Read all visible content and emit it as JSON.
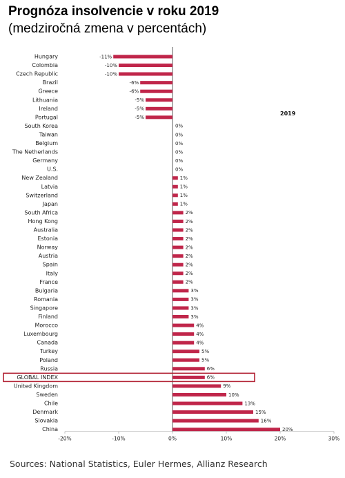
{
  "title": "Prognóza insolvencie v roku 2019",
  "subtitle": "(medziročná zmena v percentách)",
  "source": "Sources: National Statistics, Euler Hermes, Allianz Research",
  "highlight_label": "GLOBAL INDEX",
  "colors": {
    "bar": "#c0264a",
    "highlight_box": "#b22234",
    "axis": "#333333"
  },
  "chart_data": {
    "type": "bar",
    "orientation": "horizontal",
    "legend": "2019",
    "legend_position": "top-right",
    "xlim": [
      -20,
      30
    ],
    "x_ticks": [
      "-20%",
      "-10%",
      "0%",
      "10%",
      "20%",
      "30%"
    ],
    "categories": [
      "Hungary",
      "Colombia",
      "Czech Republic",
      "Brazil",
      "Greece",
      "Lithuania",
      "Ireland",
      "Portugal",
      "South Korea",
      "Taiwan",
      "Belgium",
      "The Netherlands",
      "Germany",
      "U.S.",
      "New Zealand",
      "Latvia",
      "Switzerland",
      "Japan",
      "South Africa",
      "Hong Kong",
      "Australia",
      "Estonia",
      "Norway",
      "Austria",
      "Spain",
      "Italy",
      "France",
      "Bulgaria",
      "Romania",
      "Singapore",
      "Finland",
      "Morocco",
      "Luxembourg",
      "Canada",
      "Turkey",
      "Poland",
      "Russia",
      "GLOBAL INDEX",
      "United Kingdom",
      "Sweden",
      "Chile",
      "Denmark",
      "Slovakia",
      "China"
    ],
    "values": [
      -11,
      -10,
      -10,
      -6,
      -6,
      -5,
      -5,
      -5,
      0,
      0,
      0,
      0,
      0,
      0,
      1,
      1,
      1,
      1,
      2,
      2,
      2,
      2,
      2,
      2,
      2,
      2,
      2,
      3,
      3,
      3,
      3,
      4,
      4,
      4,
      5,
      5,
      6,
      6,
      9,
      10,
      13,
      15,
      16,
      20
    ],
    "labels": [
      "-11%",
      "-10%",
      "-10%",
      "-6%",
      "-6%",
      "-5%",
      "-5%",
      "-5%",
      "0%",
      "0%",
      "0%",
      "0%",
      "0%",
      "0%",
      "1%",
      "1%",
      "1%",
      "1%",
      "2%",
      "2%",
      "2%",
      "2%",
      "2%",
      "2%",
      "2%",
      "2%",
      "2%",
      "3%",
      "3%",
      "3%",
      "3%",
      "4%",
      "4%",
      "4%",
      "5%",
      "5%",
      "6%",
      "6%",
      "9%",
      "10%",
      "13%",
      "15%",
      "16%",
      "20%"
    ]
  }
}
